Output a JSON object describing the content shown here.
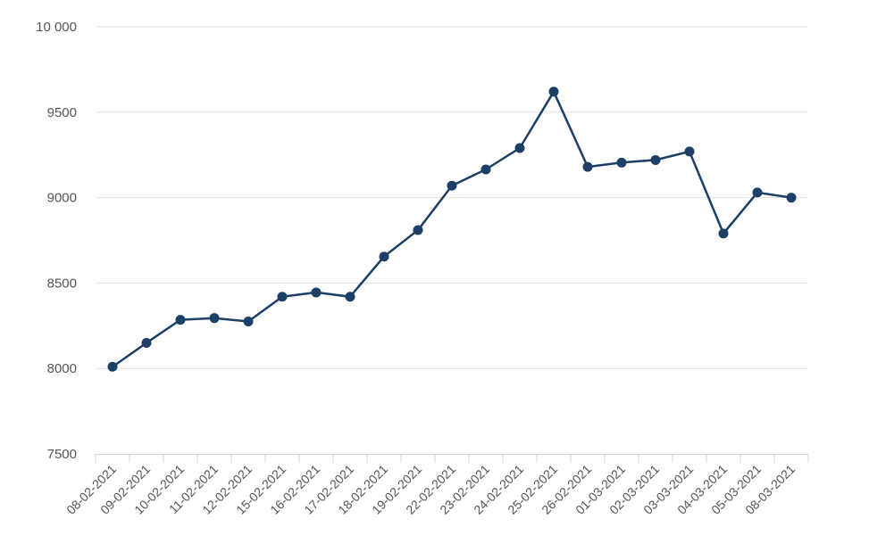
{
  "chart_data": {
    "type": "line",
    "title": "",
    "xlabel": "",
    "ylabel": "",
    "ylim": [
      7500,
      10000
    ],
    "y_ticks": [
      7500,
      8000,
      8500,
      9000,
      9500,
      10000
    ],
    "y_tick_labels": [
      "7500",
      "8000",
      "8500",
      "9000",
      "9500",
      "10 000"
    ],
    "grid": "horizontal",
    "legend": "none",
    "colors": {
      "series": "#1b3f66",
      "grid": "#e1e1e1",
      "axis": "#c8d4e3",
      "text": "#555555"
    },
    "categories": [
      "08-02-2021",
      "09-02-2021",
      "10-02-2021",
      "11-02-2021",
      "12-02-2021",
      "15-02-2021",
      "16-02-2021",
      "17-02-2021",
      "18-02-2021",
      "19-02-2021",
      "22-02-2021",
      "23-02-2021",
      "24-02-2021",
      "25-02-2021",
      "26-02-2021",
      "01-03-2021",
      "02-03-2021",
      "03-03-2021",
      "04-03-2021",
      "05-03-2021",
      "08-03-2021"
    ],
    "series": [
      {
        "values": [
          8010,
          8150,
          8285,
          8295,
          8275,
          8420,
          8445,
          8420,
          8655,
          8810,
          9070,
          9165,
          9290,
          9620,
          9180,
          9205,
          9220,
          9270,
          8790,
          9030,
          9000
        ]
      }
    ]
  }
}
